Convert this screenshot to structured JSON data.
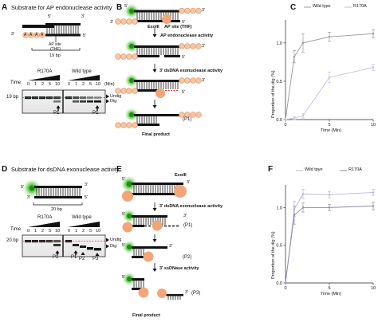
{
  "panelA": {
    "letter": "A",
    "title": "Substrate for AP endonuclease activity",
    "top_label_5": "5'",
    "top_label_3": "3'",
    "bot_label_3": "3'",
    "bot_label_5": "5'",
    "flag": "A",
    "ap_site": "AP site",
    "thf": "(THF)",
    "length": "19 bp",
    "gel": {
      "group_left": "R170A",
      "group_right": "Wild type",
      "time_label": "Time",
      "times": [
        "0",
        "1",
        "2",
        "5",
        "10"
      ],
      "unit": "(Min)",
      "size_label": "19 bp",
      "undig": "Undig",
      "dig": "Dig",
      "product": "P1"
    }
  },
  "panelB": {
    "letter": "B",
    "label_5": "5'",
    "label_3": "3'",
    "enzyme": "ExoIII",
    "ap_site": "AP site (THF)",
    "step1": "AP endonuclease activity",
    "step2": "3' dsDNA exonuclease activity",
    "product": "(P1)",
    "final": "Final product",
    "flag": "A"
  },
  "panelC": {
    "letter": "C",
    "ylabel": "Proportion of the dig (%)",
    "xlabel": "Time (Min)",
    "legend": [
      "Wild type",
      "R170A"
    ]
  },
  "panelD": {
    "letter": "D",
    "title": "Substrate for dsDNA exonuclease activity",
    "label_5": "5'",
    "label_3": "3'",
    "length": "20 bp",
    "gel": {
      "group_left": "R170A",
      "group_right": "Wild type",
      "time_label": "Time",
      "times": [
        "0",
        "1",
        "2",
        "5",
        "10"
      ],
      "size_label": "20 bp",
      "undig": "Undig",
      "dig": "Dig",
      "products": [
        "P1",
        "P1",
        "P2",
        "P3"
      ]
    }
  },
  "panelE": {
    "letter": "E",
    "label_5": "5'",
    "label_3": "3'",
    "enzyme": "ExoIII",
    "step1": "3' dsDNA exonuclease activity",
    "step2": "3' ssDNase activity",
    "products": [
      "(P1)",
      "(P2)",
      "(P3)"
    ],
    "final": "Final product"
  },
  "panelF": {
    "letter": "F",
    "ylabel": "Proportion of the dig (%)",
    "xlabel": "Time (Min)",
    "legend": [
      "Wild tpye",
      "R170A"
    ]
  },
  "chart_data": [
    {
      "type": "line",
      "panel": "C",
      "title": "",
      "xlabel": "Time (Min)",
      "ylabel": "Proportion of the dig (%)",
      "x": [
        0,
        1,
        2,
        5,
        10
      ],
      "xticks": [
        0,
        5,
        10
      ],
      "yticks": [
        0.0,
        0.5,
        1.0
      ],
      "xlim": [
        0,
        10
      ],
      "ylim": [
        0,
        1.3
      ],
      "grid": false,
      "legend_position": "top-right",
      "series": [
        {
          "name": "Wild type",
          "color": "#999999",
          "values": [
            0,
            0.82,
            1.0,
            1.08,
            1.12
          ],
          "errors": [
            0,
            0.08,
            0.12,
            0.06,
            0.05
          ]
        },
        {
          "name": "R170A",
          "color": "#c6c2dc",
          "values": [
            0,
            0.02,
            0.05,
            0.55,
            0.68
          ],
          "errors": [
            0,
            0.02,
            0.03,
            0.07,
            0.04
          ]
        }
      ]
    },
    {
      "type": "line",
      "panel": "F",
      "title": "",
      "xlabel": "Time (Min)",
      "ylabel": "Proportion of the dig (%)",
      "x": [
        0,
        1,
        2,
        5,
        10
      ],
      "xticks": [
        0,
        5,
        10
      ],
      "yticks": [
        0.0,
        0.5,
        1.0
      ],
      "xlim": [
        0,
        10
      ],
      "ylim": [
        0,
        1.3
      ],
      "grid": false,
      "legend_position": "top-right",
      "series": [
        {
          "name": "Wild tpye",
          "color": "#b9b4d6",
          "values": [
            0,
            0.98,
            1.18,
            1.17,
            1.2
          ],
          "errors": [
            0,
            0.1,
            0.06,
            0.04,
            0.04
          ]
        },
        {
          "name": "R170A",
          "color": "#8f8fa0",
          "values": [
            0,
            0.9,
            1.0,
            1.0,
            1.02
          ],
          "errors": [
            0,
            0.12,
            0.06,
            0.04,
            0.05
          ]
        }
      ]
    }
  ]
}
